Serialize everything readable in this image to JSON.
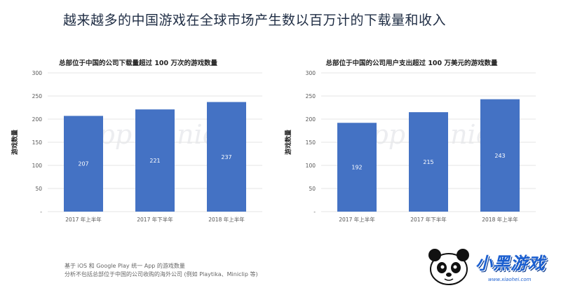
{
  "page": {
    "title": "越来越多的中国游戏在全球市场产生数以百万计的下载量和收入",
    "footnote_1": "基于 iOS 和 Google Play 统一 App 的游戏数量",
    "footnote_2": "分析不包括总部位于中国的公司收购的海外公司 (例如 Playtika、Miniclip 等)",
    "watermark": "App Annie",
    "logo_text": "小黑游戏",
    "logo_url": "www.xiaohei.com"
  },
  "colors": {
    "bar": "#4472c4",
    "grid": "#e6e6e6",
    "axis_text": "#555555"
  },
  "chart_data": [
    {
      "type": "bar",
      "title": "总部位于中国的公司下载量超过 100 万次的游戏数量",
      "ylabel": "游戏数量",
      "categories": [
        "2017 年上半年",
        "2017 年下半年",
        "2018 年上半年"
      ],
      "values": [
        207,
        221,
        237
      ],
      "ylim": [
        0,
        300
      ],
      "yticks": [
        300,
        250,
        200,
        150,
        100,
        50,
        0
      ],
      "ytick_labels": [
        "300",
        "250",
        "200",
        "150",
        "100",
        "50",
        "-"
      ],
      "grid": true
    },
    {
      "type": "bar",
      "title": "总部位于中国的公司用户支出超过 100 万美元的游戏数量",
      "ylabel": "游戏数量",
      "categories": [
        "2017 年上半年",
        "2017 年下半年",
        "2018 年上半年"
      ],
      "values": [
        192,
        215,
        243
      ],
      "ylim": [
        0,
        300
      ],
      "yticks": [
        300,
        250,
        200,
        150,
        100,
        50,
        0
      ],
      "ytick_labels": [
        "300",
        "250",
        "200",
        "150",
        "100",
        "50",
        "-"
      ],
      "grid": true
    }
  ]
}
